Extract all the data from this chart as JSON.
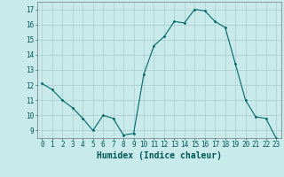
{
  "x": [
    0,
    1,
    2,
    3,
    4,
    5,
    6,
    7,
    8,
    9,
    10,
    11,
    12,
    13,
    14,
    15,
    16,
    17,
    18,
    19,
    20,
    21,
    22,
    23
  ],
  "y": [
    12.1,
    11.7,
    11.0,
    10.5,
    9.8,
    9.0,
    10.0,
    9.8,
    8.7,
    8.8,
    12.7,
    14.6,
    15.2,
    16.2,
    16.1,
    17.0,
    16.9,
    16.2,
    15.8,
    13.4,
    11.0,
    9.9,
    9.8,
    8.5
  ],
  "line_color": "#006666",
  "marker": "o",
  "marker_size": 2.0,
  "background_color": "#c8eaea",
  "grid_color": "#aacccc",
  "xlabel": "Humidex (Indice chaleur)",
  "xlim": [
    -0.5,
    23.5
  ],
  "ylim": [
    8.5,
    17.5
  ],
  "yticks": [
    9,
    10,
    11,
    12,
    13,
    14,
    15,
    16,
    17
  ],
  "xticks": [
    0,
    1,
    2,
    3,
    4,
    5,
    6,
    7,
    8,
    9,
    10,
    11,
    12,
    13,
    14,
    15,
    16,
    17,
    18,
    19,
    20,
    21,
    22,
    23
  ],
  "tick_fontsize": 5.5,
  "xlabel_fontsize": 7.0,
  "label_color": "#005555"
}
